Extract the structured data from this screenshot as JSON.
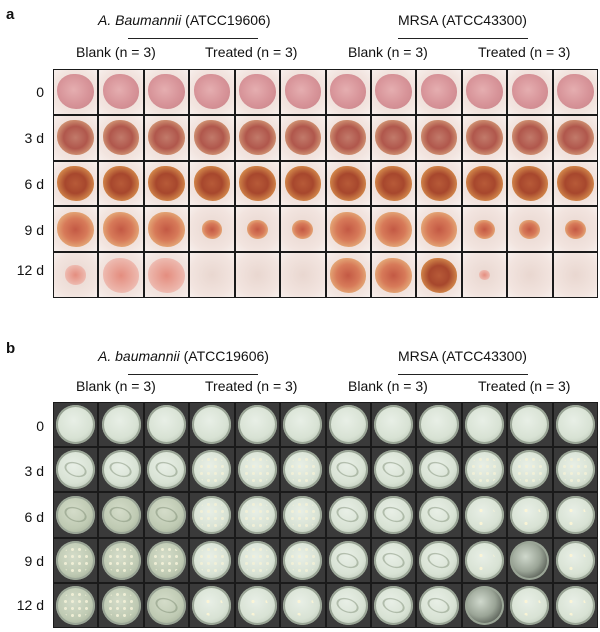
{
  "panel_a": {
    "letter": "a",
    "organism_left_italic": "A. Baumannii",
    "organism_left_strain": " (ATCC19606)",
    "organism_right": "MRSA (ATCC43300)",
    "groups": [
      "Blank (n = 3)",
      "Treated (n = 3)",
      "Blank (n = 3)",
      "Treated (n = 3)"
    ],
    "rows": [
      "0",
      "3 d",
      "6 d",
      "9 d",
      "12 d"
    ]
  },
  "panel_b": {
    "letter": "b",
    "organism_left_italic": "A. baumannii",
    "organism_left_strain": " (ATCC19606)",
    "organism_right": "MRSA (ATCC43300)",
    "groups": [
      "Blank (n = 3)",
      "Treated (n = 3)",
      "Blank (n = 3)",
      "Treated (n = 3)"
    ],
    "rows": [
      "0",
      "3 d",
      "6 d",
      "9 d",
      "12 d"
    ]
  },
  "colors": {
    "wound_day0": "#d8959a",
    "wound_scab": "#a7472d",
    "plate_agar": "#d8e2d4",
    "grid_border": "#1a1a1a"
  }
}
